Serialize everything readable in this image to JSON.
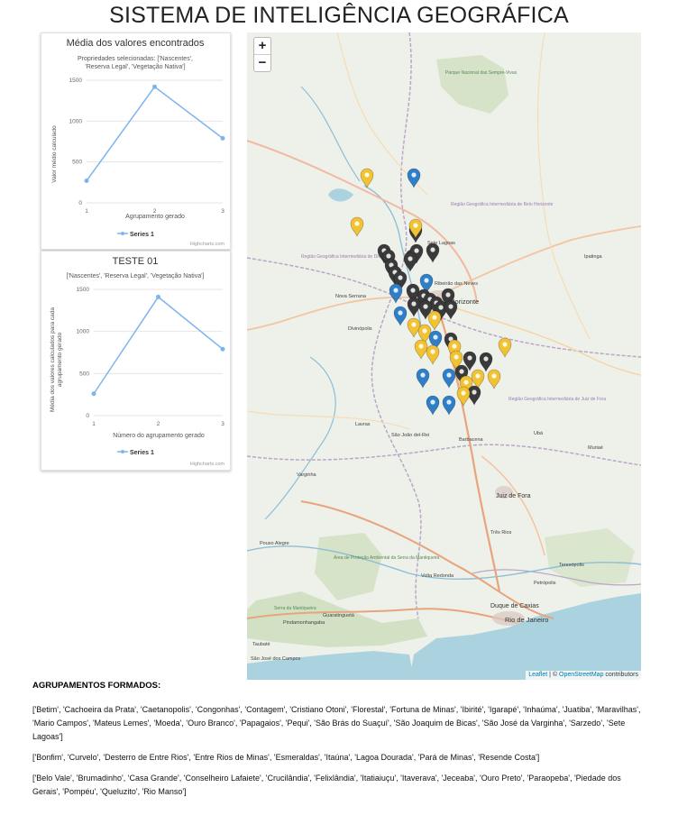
{
  "page": {
    "title": "SISTEMA DE INTELIGÊNCIA GEOGRÁFICA"
  },
  "chart1": {
    "title": "Média dos valores encontrados",
    "subtitle_line1": "Propriedades selecionadas: ['Nascentes',",
    "subtitle_line2": "'Reserva Legal', 'Vegetação Nativa']",
    "ylabel": "Valor médio calculado",
    "xlabel": "Agrupamento gerado",
    "legend": "Series 1",
    "credits": "Highcharts.com"
  },
  "chart2": {
    "title": "TESTE 01",
    "subtitle": "['Nascentes', 'Reserva Legal', 'Vegetação Nativa']",
    "ylabel_line1": "Média dos valores calculados para cada",
    "ylabel_line2": "agrupamento gerado",
    "xlabel": "Número do agrupamento gerado",
    "legend": "Series 1",
    "credits": "Highcharts.com"
  },
  "chart_data": [
    {
      "type": "line",
      "title": "Média dos valores encontrados",
      "subtitle": "Propriedades selecionadas: ['Nascentes', 'Reserva Legal', 'Vegetação Nativa']",
      "xlabel": "Agrupamento gerado",
      "ylabel": "Valor médio calculado",
      "x": [
        1,
        2,
        3
      ],
      "ylim": [
        0,
        1500
      ],
      "yticks": [
        0,
        500,
        1000,
        1500
      ],
      "series": [
        {
          "name": "Series 1",
          "values": [
            270,
            1420,
            790
          ]
        }
      ],
      "color": "#7cb5ec",
      "grid": true,
      "legend": "bottom-center"
    },
    {
      "type": "line",
      "title": "TESTE 01",
      "subtitle": "['Nascentes', 'Reserva Legal', 'Vegetação Nativa']",
      "xlabel": "Número do agrupamento gerado",
      "ylabel": "Média dos valores calculados para cada agrupamento gerado",
      "x": [
        1,
        2,
        3
      ],
      "ylim": [
        0,
        1500
      ],
      "yticks": [
        0,
        500,
        1000,
        1500
      ],
      "series": [
        {
          "name": "Series 1",
          "values": [
            260,
            1410,
            790
          ]
        }
      ],
      "color": "#7cb5ec",
      "grid": true,
      "legend": "bottom-center"
    }
  ],
  "map": {
    "zoom_in": "+",
    "zoom_out": "−",
    "attribution_leaflet": "Leaflet",
    "attribution_sep": " | © ",
    "attribution_osm": "OpenStreetMap",
    "attribution_tail": " contributors",
    "colors": {
      "cluster_1": "#2f7fc8",
      "cluster_2": "#f1c232",
      "cluster_3": "#3a3a3a"
    },
    "labels": {
      "belo_horizonte": "Belo Horizonte",
      "ribeirao_neves": "Ribeirão das Neves",
      "nova_serrana": "Nova Serrana",
      "divinopolis": "Divinópolis",
      "juiz_de_fora": "Juiz de Fora",
      "barbacena": "Barbacena",
      "varginha": "Varginha",
      "volta_redonda": "Volta Redonda",
      "duque_de_caxias": "Duque de Caxias",
      "rio_de_janeiro": "Rio de Janeiro",
      "petropolis": "Petrópolis",
      "teresopolis": "Teresópolis",
      "ipatinga": "Ipatinga",
      "sete_lagoas": "Sete Lagoas",
      "pouso_alegre": "Pouso Alegre",
      "guaratingueta": "Guaratinguetá",
      "taubate": "Taubaté",
      "sao_jose_campos": "São José dos Campos",
      "pindamonhangaba": "Pindamonhangaba",
      "tres_rios": "Três Rios",
      "ubá": "Ubá",
      "muriae": "Muriaé",
      "lavras": "Lavras",
      "sao_joao_del_rei": "São João del-Rei",
      "serra_mantiqueira": "Serra da Mantiqueira",
      "parque_sempre_vivas": "Parque Nacional das Sempre-Vivas",
      "regiao_bh": "Região Geográfica Intermediária de Belo Horizonte",
      "regiao_divinopolis": "Região Geográfica Intermediária de Divinópolis",
      "regiao_juiz_fora": "Região Geográfica Intermediária de Juiz de Fora",
      "area_protecao": "Área de Proteção Ambiental da Serra da Mantiqueira"
    }
  },
  "clusters": {
    "heading": "AGRUPAMENTOS FORMADOS:",
    "group1": "['Betim', 'Cachoeira da Prata', 'Caetanopolis', 'Congonhas', 'Contagem', 'Cristiano Otoni', 'Florestal', 'Fortuna de Minas', 'Ibirité', 'Igarapé', 'Inhaúma', 'Juatiba', 'Maravilhas', 'Mario Campos', 'Mateus Lemes', 'Moeda', 'Ouro Branco', 'Papagaios', 'Pequi', 'São Brás do Suaçuí', 'São Joaquim de Bicas', 'São José da Varginha', 'Sarzedo', 'Sete Lagoas']",
    "group2": "['Bonfim', 'Curvelo', 'Desterro de Entre Rios', 'Entre Rios de Minas', 'Esmeraldas', 'Itaúna', 'Lagoa Dourada', 'Pará de Minas', 'Resende Costa']",
    "group3": "['Belo Vale', 'Brumadinho', 'Casa Grande', 'Conselheiro Lafaiete', 'Crucilândia', 'Felixlândia', 'Itatiaiuçu', 'Itaverava', 'Jeceaba', 'Ouro Preto', 'Paraopeba', 'Piedade dos Gerais', 'Pompéu', 'Queluzito', 'Rio Manso']"
  }
}
